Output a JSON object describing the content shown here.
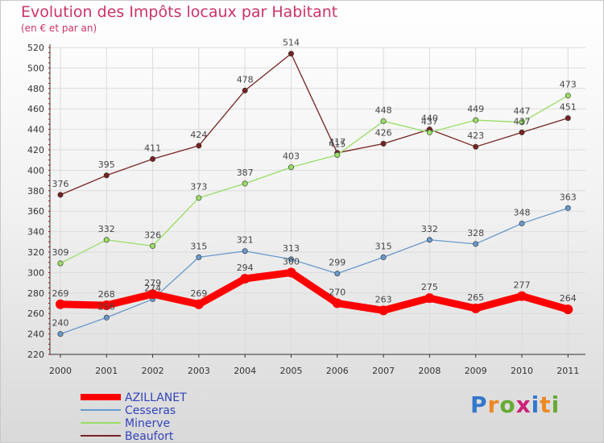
{
  "chart_data": {
    "type": "line",
    "title": "Evolution des Impôts locaux par Habitant",
    "subtitle": "(en € et par an)",
    "categories": [
      "2000",
      "2001",
      "2002",
      "2003",
      "2004",
      "2005",
      "2006",
      "2007",
      "2008",
      "2009",
      "2010",
      "2011"
    ],
    "ylim": [
      220,
      520
    ],
    "yticks": [
      220,
      240,
      260,
      280,
      300,
      320,
      340,
      360,
      380,
      400,
      420,
      440,
      460,
      480,
      500,
      520
    ],
    "series": [
      {
        "name": "AZILLANET",
        "color": "#ff0000",
        "values": [
          269,
          268,
          279,
          269,
          294,
          300,
          270,
          263,
          275,
          265,
          277,
          264
        ]
      },
      {
        "name": "Cesseras",
        "color": "#6699cc",
        "values": [
          240,
          256,
          274,
          315,
          321,
          313,
          299,
          315,
          332,
          328,
          348,
          363
        ]
      },
      {
        "name": "Minerve",
        "color": "#99dd66",
        "values": [
          309,
          332,
          326,
          373,
          387,
          403,
          415,
          448,
          437,
          449,
          447,
          473
        ]
      },
      {
        "name": "Beaufort",
        "color": "#772222",
        "values": [
          376,
          395,
          411,
          424,
          478,
          514,
          417,
          426,
          440,
          423,
          437,
          451
        ]
      }
    ]
  },
  "logo": {
    "text": "Proxiti",
    "letters": [
      "P",
      "r",
      "o",
      "x",
      "i",
      "t",
      "i"
    ],
    "colors": [
      "#3377cc",
      "#ee8822",
      "#66aa33",
      "#cc2277",
      "#3377cc",
      "#ee8822",
      "#66aa33"
    ]
  }
}
